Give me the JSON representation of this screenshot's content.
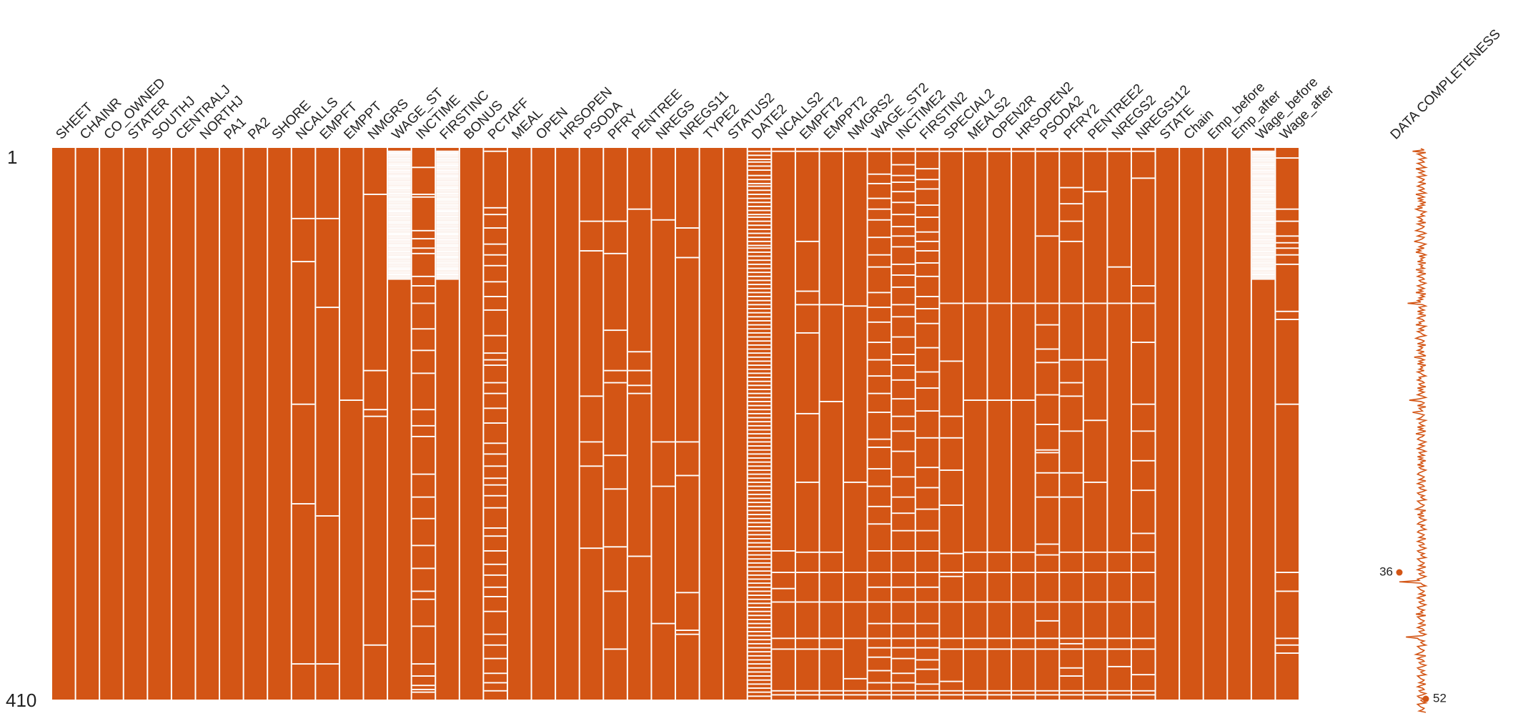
{
  "chart_data": {
    "type": "heatmap",
    "subtype": "missingness-matrix",
    "columns": [
      "SHEET",
      "CHAINR",
      "CO_OWNED",
      "STATER",
      "SOUTHJ",
      "CENTRALJ",
      "NORTHJ",
      "PA1",
      "PA2",
      "SHORE",
      "NCALLS",
      "EMPFT",
      "EMPPT",
      "NMGRS",
      "WAGE_ST",
      "INCTIME",
      "FIRSTINC",
      "BONUS",
      "PCTAFF",
      "MEAL",
      "OPEN",
      "HRSOPEN",
      "PSODA",
      "PFRY",
      "PENTREE",
      "NREGS",
      "NREGS11",
      "TYPE2",
      "STATUS2",
      "DATE2",
      "NCALLS2",
      "EMPFT2",
      "EMPPT2",
      "NMGRS2",
      "WAGE_ST2",
      "INCTIME2",
      "FIRSTIN2",
      "SPECIAL2",
      "MEALS2",
      "OPEN2R",
      "HRSOPEN2",
      "PSODA2",
      "PFRY2",
      "PENTREE2",
      "NREGS2",
      "NREGS112",
      "STATE",
      "Chain",
      "Emp_before",
      "Emp_after",
      "Wage_before",
      "Wage_after"
    ],
    "row_labels": {
      "top": "1",
      "bottom": "410"
    },
    "n_rows": 410,
    "colors": {
      "present": "#d35515",
      "missing": "#ffffff",
      "background": "#ffffff"
    },
    "missing_rows": {
      "NCALLS": [
        53,
        85,
        191,
        265,
        384
      ],
      "EMPFT": [
        53,
        119,
        274,
        384
      ],
      "EMPPT": [
        188
      ],
      "NMGRS": [
        35,
        166,
        195,
        200,
        370
      ],
      "WAGE_ST": [
        3,
        4,
        5,
        6,
        7,
        8,
        9,
        10,
        11,
        12,
        13,
        14,
        15,
        16,
        17,
        18,
        19,
        20,
        21,
        22,
        23,
        24,
        25,
        26,
        27,
        28,
        29,
        30,
        31,
        32,
        33,
        34,
        35,
        36,
        37,
        38,
        39,
        40,
        41,
        42,
        43,
        44,
        45,
        46,
        47,
        48,
        49,
        50,
        51,
        52,
        53,
        54,
        55,
        56,
        57,
        58,
        59,
        60,
        61,
        62,
        63,
        64,
        65,
        66,
        67,
        68,
        69,
        70,
        71,
        72,
        73,
        74,
        75,
        76,
        77,
        78,
        79,
        80,
        81,
        82,
        83,
        84,
        85,
        86,
        87,
        88,
        89,
        90,
        91,
        92,
        93,
        94,
        95,
        96,
        97,
        98
      ],
      "INCTIME": [
        15,
        35,
        37,
        62,
        68,
        75,
        79,
        96,
        103,
        116,
        135,
        151,
        168,
        195,
        207,
        215,
        243,
        260,
        276,
        296,
        313,
        330,
        336,
        356,
        384,
        393,
        400,
        403,
        405
      ],
      "FIRSTINC": [
        3,
        4,
        5,
        6,
        7,
        8,
        9,
        10,
        11,
        12,
        13,
        14,
        15,
        16,
        17,
        18,
        19,
        20,
        21,
        22,
        23,
        24,
        25,
        26,
        27,
        28,
        29,
        30,
        31,
        32,
        33,
        34,
        35,
        36,
        37,
        38,
        39,
        40,
        41,
        42,
        43,
        44,
        45,
        46,
        47,
        48,
        49,
        50,
        51,
        52,
        53,
        54,
        55,
        56,
        57,
        58,
        59,
        60,
        61,
        62,
        63,
        64,
        65,
        66,
        67,
        68,
        69,
        70,
        71,
        72,
        73,
        74,
        75,
        76,
        77,
        78,
        79,
        80,
        81,
        82,
        83,
        84,
        85,
        86,
        87,
        88,
        89,
        90,
        91,
        92,
        93,
        94,
        95,
        96,
        97,
        98
      ],
      "PCTAFF": [
        3,
        45,
        50,
        60,
        72,
        80,
        88,
        100,
        111,
        121,
        140,
        153,
        158,
        162,
        175,
        183,
        194,
        205,
        220,
        228,
        237,
        246,
        251,
        259,
        268,
        283,
        289,
        300,
        310,
        318,
        327,
        334,
        345,
        362,
        370,
        380,
        391,
        398,
        404
      ],
      "PSODA": [
        55,
        77,
        185,
        219,
        237,
        298
      ],
      "PFRY": [
        55,
        79,
        136,
        166,
        175,
        229,
        254,
        297,
        330,
        373
      ],
      "PENTREE": [
        46,
        152,
        166,
        177,
        183,
        304
      ],
      "NREGS": [
        54,
        219,
        252,
        354
      ],
      "NREGS11": [
        60,
        82,
        219,
        244,
        331,
        359,
        362
      ],
      "DATE2": [
        3,
        6,
        9,
        11,
        14,
        17,
        21,
        24,
        27,
        29,
        32,
        35,
        38,
        41,
        44,
        47,
        50,
        52,
        55,
        58,
        61,
        64,
        67,
        70,
        73,
        75,
        78,
        81,
        84,
        87,
        90,
        93,
        96,
        99,
        102,
        105,
        108,
        111,
        114,
        117,
        120,
        123,
        126,
        129,
        132,
        135,
        138,
        141,
        144,
        147,
        150,
        153,
        156,
        159,
        162,
        165,
        168,
        171,
        174,
        177,
        180,
        183,
        186,
        189,
        192,
        195,
        198,
        201,
        204,
        207,
        210,
        213,
        216,
        219,
        222,
        225,
        228,
        231,
        234,
        237,
        240,
        243,
        246,
        249,
        252,
        255,
        258,
        261,
        264,
        267,
        270,
        273,
        276,
        279,
        282,
        285,
        288,
        291,
        294,
        297,
        300,
        303,
        306,
        309,
        312,
        315,
        318,
        321,
        324,
        327,
        330,
        333,
        336,
        339,
        342,
        345,
        348,
        351,
        354,
        357,
        360,
        363,
        366,
        369,
        372,
        375,
        378,
        381,
        384,
        387,
        390,
        393,
        396,
        399,
        402,
        405,
        408
      ],
      "NCALLS2": [
        3,
        300,
        316,
        328,
        338,
        365,
        373,
        404,
        407
      ],
      "EMPFT2": [
        3,
        70,
        107,
        117,
        138,
        198,
        249,
        301,
        316,
        338,
        365,
        373,
        404,
        407
      ],
      "EMPPT2": [
        3,
        117,
        189,
        301,
        316,
        338,
        365,
        373,
        404,
        407
      ],
      "NMGRS2": [
        3,
        118,
        249,
        316,
        338,
        365,
        395,
        404,
        407
      ],
      "WAGE_ST2": [
        3,
        20,
        27,
        38,
        46,
        54,
        67,
        80,
        89,
        108,
        119,
        130,
        145,
        158,
        170,
        183,
        197,
        217,
        223,
        239,
        252,
        267,
        280,
        300,
        316,
        327,
        338,
        354,
        365,
        372,
        379,
        389,
        398,
        404,
        407
      ],
      "INCTIME2": [
        3,
        13,
        21,
        26,
        33,
        41,
        50,
        59,
        66,
        74,
        87,
        95,
        104,
        117,
        126,
        141,
        154,
        162,
        173,
        187,
        200,
        211,
        226,
        245,
        260,
        272,
        285,
        300,
        316,
        327,
        338,
        354,
        365,
        372,
        380,
        391,
        398,
        404,
        407
      ],
      "FIRSTIN2": [
        3,
        16,
        24,
        31,
        43,
        52,
        63,
        70,
        77,
        86,
        96,
        111,
        120,
        131,
        149,
        167,
        179,
        196,
        216,
        238,
        253,
        269,
        285,
        300,
        316,
        327,
        338,
        354,
        365,
        372,
        381,
        388,
        399,
        404,
        407
      ],
      "SPECIAL2": [
        3,
        116,
        159,
        200,
        216,
        240,
        266,
        302,
        316,
        319,
        338,
        365,
        373,
        397,
        404,
        407
      ],
      "MEALS2": [
        3,
        116,
        188,
        301,
        316,
        338,
        365,
        373,
        404,
        407
      ],
      "OPEN2R": [
        3,
        116,
        188,
        301,
        316,
        338,
        365,
        373,
        404,
        407
      ],
      "HRSOPEN2": [
        3,
        116,
        188,
        301,
        316,
        338,
        365,
        373,
        404,
        407
      ],
      "PSODA2": [
        3,
        66,
        116,
        132,
        150,
        160,
        184,
        206,
        225,
        227,
        242,
        260,
        295,
        303,
        316,
        338,
        352,
        365,
        373,
        404,
        407
      ],
      "PFRY2": [
        3,
        30,
        42,
        55,
        70,
        116,
        158,
        175,
        185,
        211,
        242,
        260,
        301,
        316,
        338,
        365,
        369,
        373,
        387,
        393,
        404,
        407
      ],
      "PENTREE2": [
        3,
        33,
        116,
        158,
        203,
        249,
        301,
        316,
        338,
        365,
        373,
        404,
        407
      ],
      "NREGS2": [
        3,
        89,
        116,
        301,
        316,
        338,
        365,
        373,
        386,
        404,
        407
      ],
      "NREGS112": [
        3,
        23,
        103,
        116,
        145,
        191,
        211,
        233,
        255,
        287,
        301,
        316,
        338,
        365,
        373,
        392,
        404,
        407
      ],
      "Wage_before": [
        3,
        4,
        5,
        6,
        7,
        8,
        9,
        10,
        11,
        12,
        13,
        14,
        15,
        16,
        17,
        18,
        19,
        20,
        21,
        22,
        23,
        24,
        25,
        26,
        27,
        28,
        29,
        30,
        31,
        32,
        33,
        34,
        35,
        36,
        37,
        38,
        39,
        40,
        41,
        42,
        43,
        44,
        45,
        46,
        47,
        48,
        49,
        50,
        51,
        52,
        53,
        54,
        55,
        56,
        57,
        58,
        59,
        60,
        61,
        62,
        63,
        64,
        65,
        66,
        67,
        68,
        69,
        70,
        71,
        72,
        73,
        74,
        75,
        76,
        77,
        78,
        79,
        80,
        81,
        82,
        83,
        84,
        85,
        86,
        87,
        88,
        89,
        90,
        91,
        92,
        93,
        94,
        95,
        96,
        97,
        98
      ],
      "Wage_after": [
        8,
        46,
        55,
        66,
        71,
        75,
        80,
        87,
        122,
        128,
        191,
        316,
        330,
        365,
        370,
        376
      ]
    },
    "completeness": {
      "label": "DATA COMPLETENESS",
      "min": 36,
      "max": 52,
      "min_row": 316,
      "max_row": 410,
      "min_label": "36",
      "max_label": "52",
      "values": [
        49,
        51,
        44,
        52,
        47,
        49,
        50,
        52,
        48,
        50,
        51,
        47,
        49,
        50,
        52,
        46,
        49,
        51,
        48,
        50,
        52,
        47,
        49,
        51,
        50,
        48,
        52,
        49,
        47,
        50,
        51,
        48,
        50,
        52,
        46,
        49,
        51,
        47,
        50,
        48,
        52,
        49,
        51,
        47,
        50,
        46,
        48,
        52,
        50,
        49,
        51,
        47,
        49,
        50,
        48,
        52,
        47,
        49,
        51,
        50,
        48,
        46,
        50,
        52,
        49,
        47,
        51,
        50,
        48,
        45,
        49,
        52,
        50,
        48,
        51,
        47,
        49,
        46,
        50,
        52,
        48,
        51,
        49,
        50,
        47,
        52,
        48,
        50,
        49,
        51,
        46,
        50,
        48,
        52,
        49,
        47,
        50,
        51,
        48,
        49,
        52,
        50,
        47,
        49,
        51,
        48,
        50,
        46,
        52,
        49,
        51,
        48,
        50,
        47,
        49,
        41,
        50,
        52,
        48,
        49,
        51,
        47,
        50,
        48,
        52,
        49,
        47,
        50,
        51,
        48,
        49,
        46,
        52,
        50,
        48,
        51,
        47,
        49,
        50,
        52,
        48,
        46,
        49,
        51,
        50,
        47,
        52,
        48,
        50,
        49,
        47,
        51,
        48,
        50,
        52,
        45,
        49,
        51,
        48,
        50,
        47,
        52,
        49,
        50,
        48,
        51,
        47,
        49,
        50,
        52,
        48,
        49,
        47,
        50,
        51,
        48,
        49,
        52,
        47,
        50,
        48,
        51,
        49,
        47,
        50,
        52,
        48,
        42,
        49,
        51,
        50,
        47,
        52,
        48,
        49,
        50,
        44,
        48,
        51,
        50,
        49,
        47,
        52,
        50,
        48,
        49,
        51,
        47,
        50,
        48,
        52,
        49,
        46,
        51,
        50,
        48,
        47,
        49,
        52,
        50,
        48,
        51,
        49,
        47,
        50,
        52,
        48,
        49,
        51,
        47,
        50,
        48,
        52,
        49,
        50,
        47,
        51,
        48,
        49,
        52,
        50,
        48,
        47,
        49,
        51,
        50,
        48,
        52,
        49,
        47,
        50,
        51,
        48,
        49,
        52,
        50,
        47,
        48,
        51,
        49,
        50,
        52,
        47,
        48,
        49,
        51,
        50,
        48,
        46,
        52,
        49,
        50,
        47,
        51,
        48,
        49,
        52,
        50,
        48,
        47,
        51,
        49,
        50,
        52,
        48,
        47,
        49,
        51,
        50,
        48,
        52,
        49,
        47,
        50,
        51,
        48,
        49,
        52,
        50,
        47,
        48,
        51,
        49,
        50,
        52,
        47,
        48,
        49,
        51,
        50,
        48,
        52,
        49,
        47,
        50,
        51,
        48,
        49,
        52,
        50,
        47,
        48,
        36,
        49,
        50,
        52,
        47,
        48,
        49,
        51,
        50,
        48,
        52,
        49,
        47,
        50,
        51,
        48,
        49,
        52,
        50,
        47,
        48,
        51,
        49,
        50,
        46,
        52,
        47,
        48,
        49,
        51,
        50,
        48,
        52,
        49,
        47,
        50,
        51,
        48,
        49,
        52,
        50,
        40,
        47,
        48,
        51,
        49,
        50,
        52,
        47,
        48,
        49,
        51,
        50,
        48,
        46,
        52,
        49,
        47,
        50,
        51,
        48,
        49,
        52,
        50,
        47,
        48,
        51,
        49,
        50,
        52,
        47,
        48,
        49,
        51,
        50,
        48,
        52,
        49,
        47,
        50,
        51,
        48,
        49,
        52,
        50,
        47,
        48,
        51,
        49,
        50,
        52,
        47,
        48,
        49,
        51,
        50,
        48,
        52
      ]
    },
    "grid": false
  }
}
